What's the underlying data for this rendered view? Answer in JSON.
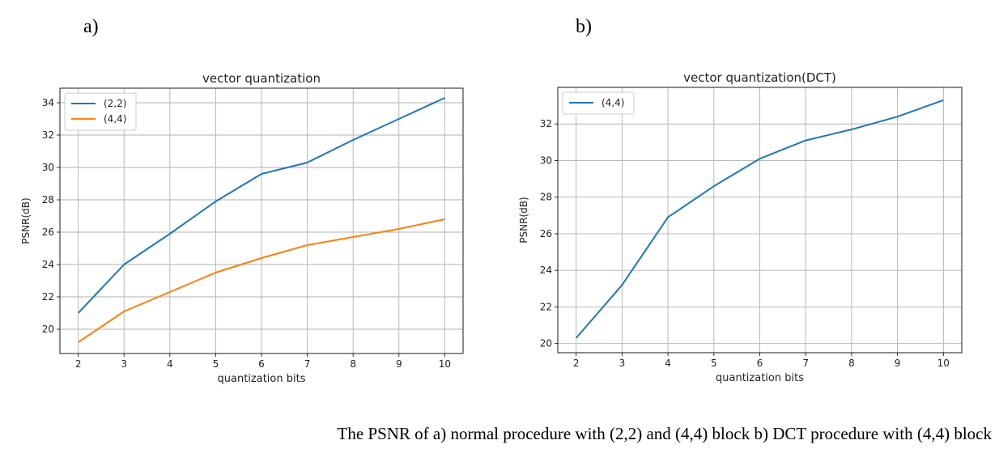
{
  "panels": {
    "a_label": "a)",
    "b_label": "b)"
  },
  "caption": "The PSNR of a) normal procedure with (2,2) and (4,4) block b) DCT procedure with (4,4) block",
  "chart_data": [
    {
      "type": "line",
      "title": "vector quantization",
      "xlabel": "quantization bits",
      "ylabel": "PSNR(dB)",
      "x": [
        2,
        3,
        4,
        5,
        6,
        7,
        8,
        9,
        10
      ],
      "xticks": [
        "2",
        "3",
        "4",
        "5",
        "6",
        "7",
        "8",
        "9",
        "10"
      ],
      "yticks": [
        "20",
        "22",
        "24",
        "26",
        "28",
        "30",
        "32",
        "34"
      ],
      "xlim": [
        1.6,
        10.4
      ],
      "ylim": [
        18.5,
        34.9
      ],
      "grid": true,
      "legend": "top-left",
      "series": [
        {
          "name": "(2,2)",
          "color": "#1f77b4",
          "values": [
            21.0,
            24.0,
            25.9,
            27.9,
            29.6,
            30.3,
            31.7,
            33.0,
            34.3
          ]
        },
        {
          "name": "(4,4)",
          "color": "#ff7f0e",
          "values": [
            19.2,
            21.1,
            22.3,
            23.5,
            24.4,
            25.2,
            25.7,
            26.2,
            26.8
          ]
        }
      ]
    },
    {
      "type": "line",
      "title": "vector quantization(DCT)",
      "xlabel": "quantization bits",
      "ylabel": "PSNR(dB)",
      "x": [
        2,
        3,
        4,
        5,
        6,
        7,
        8,
        9,
        10
      ],
      "xticks": [
        "2",
        "3",
        "4",
        "5",
        "6",
        "7",
        "8",
        "9",
        "10"
      ],
      "yticks": [
        "20",
        "22",
        "24",
        "26",
        "28",
        "30",
        "32"
      ],
      "xlim": [
        1.6,
        10.4
      ],
      "ylim": [
        19.5,
        34.0
      ],
      "grid": true,
      "legend": "top-left",
      "series": [
        {
          "name": "(4,4)",
          "color": "#1f77b4",
          "values": [
            20.3,
            23.2,
            26.9,
            28.6,
            30.1,
            31.1,
            31.7,
            32.4,
            33.3
          ]
        }
      ]
    }
  ]
}
